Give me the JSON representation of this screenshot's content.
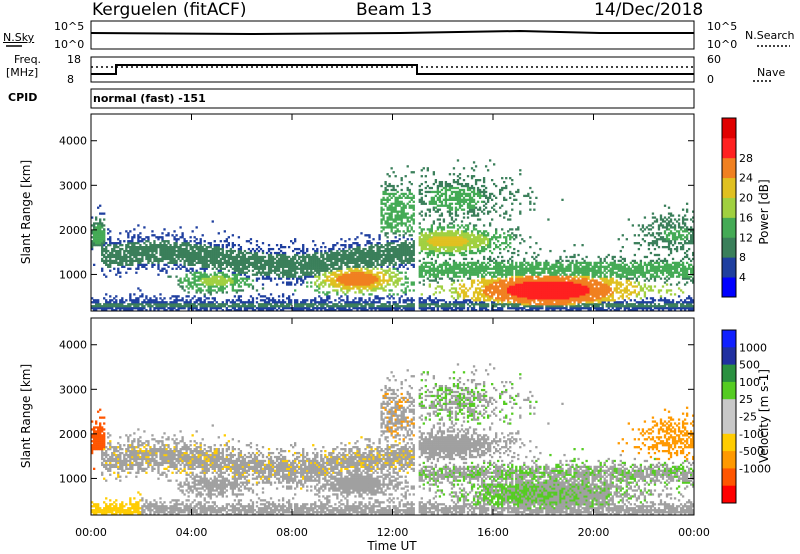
{
  "header": {
    "title": "Kerguelen (fitACF)",
    "beam": "Beam 13",
    "date": "14/Dec/2018"
  },
  "noise_panel": {
    "left_label": "N.Sky",
    "right_label": "N.Search",
    "left_ticks": [
      "10^5",
      "10^0"
    ],
    "right_ticks": [
      "10^5",
      "10^0"
    ]
  },
  "freq_panel": {
    "left_label_line1": "Freq.",
    "left_label_line2": "[MHz]",
    "left_ticks": [
      "18",
      "8"
    ],
    "right_ticks": [
      "60",
      "0"
    ],
    "right_label": "Nave",
    "cpid_label": "CPID",
    "mode_text": "normal (fast) -151"
  },
  "colors": {
    "power": [
      "#0000ff",
      "#1f3f9f",
      "#3a7f5a",
      "#44aa55",
      "#a0d040",
      "#e0c020",
      "#f08020",
      "#ff2020",
      "#e00000"
    ],
    "velocity": [
      "#ff0000",
      "#ff5500",
      "#ff9900",
      "#ffcc00",
      "#c8c8c8",
      "#c8c8c8",
      "#55cc22",
      "#2a9040",
      "#2030a0",
      "#1020ff"
    ],
    "ground": "#a0a0a0"
  },
  "chart_data": [
    {
      "type": "heatmap",
      "name": "power",
      "ylabel": "Slant Range [km]",
      "colorbar_label": "Power [dB]",
      "ylim": [
        180,
        4600
      ],
      "yticks": [
        1000,
        2000,
        3000,
        4000
      ],
      "xlim": [
        0,
        24
      ],
      "xticks": [
        "00:00",
        "04:00",
        "08:00",
        "12:00",
        "16:00",
        "20:00",
        "00:00"
      ],
      "colorbar_ticks": [
        "4",
        "8",
        "12",
        "16",
        "20",
        "24",
        "28"
      ],
      "grid": false
    },
    {
      "type": "heatmap",
      "name": "velocity",
      "ylabel": "Slant Range [km]",
      "colorbar_label": "Velocity [m s-1]",
      "xlabel": "Time UT",
      "ylim": [
        180,
        4600
      ],
      "yticks": [
        1000,
        2000,
        3000,
        4000
      ],
      "xlim": [
        0,
        24
      ],
      "xticks": [
        "00:00",
        "04:00",
        "08:00",
        "12:00",
        "16:00",
        "20:00",
        "00:00"
      ],
      "colorbar_ticks": [
        "1000",
        "500",
        "100",
        "25",
        "-25",
        "-100",
        "-500",
        "-1000"
      ],
      "grid": false
    }
  ]
}
